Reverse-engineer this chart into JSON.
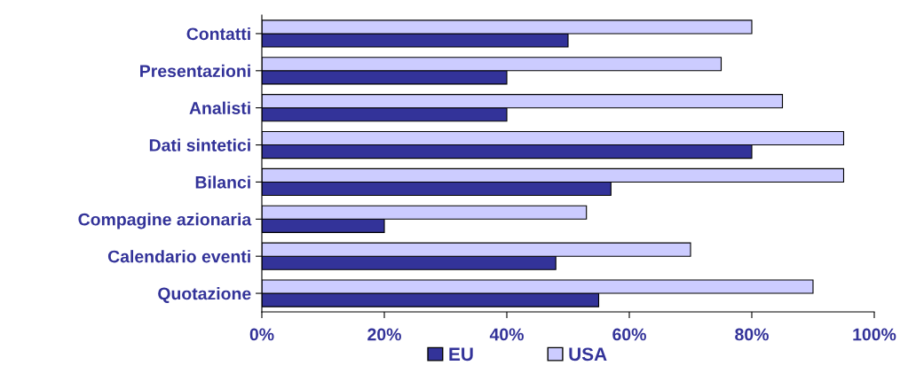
{
  "chart_data": {
    "type": "bar",
    "orientation": "horizontal",
    "categories": [
      "Contatti",
      "Presentazioni",
      "Analisti",
      "Dati sintetici",
      "Bilanci",
      "Compagine azionaria",
      "Calendario eventi",
      "Quotazione"
    ],
    "series": [
      {
        "name": "EU",
        "color": "#333399",
        "values": [
          50,
          40,
          40,
          80,
          57,
          20,
          48,
          55
        ]
      },
      {
        "name": "USA",
        "color": "#ccccff",
        "values": [
          80,
          75,
          85,
          95,
          95,
          53,
          70,
          90
        ]
      }
    ],
    "xlim": [
      0,
      100
    ],
    "xticks": [
      {
        "value": 0,
        "label": "0%"
      },
      {
        "value": 20,
        "label": "20%"
      },
      {
        "value": 40,
        "label": "40%"
      },
      {
        "value": 60,
        "label": "60%"
      },
      {
        "value": 80,
        "label": "80%"
      },
      {
        "value": 100,
        "label": "100%"
      }
    ],
    "grid": false,
    "legend": "bottom"
  }
}
